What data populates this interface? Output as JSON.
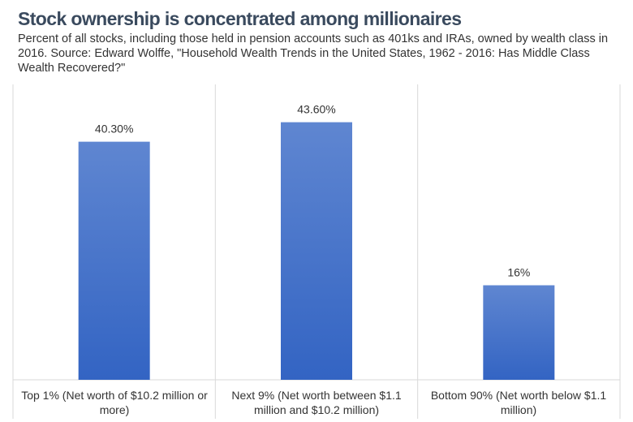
{
  "chart_data": {
    "type": "bar",
    "title": "Stock ownership is concentrated among millionaires",
    "subtitle": "Percent of all stocks, including those held in pension accounts such as 401ks and IRAs, owned by wealth class in 2016. Source: Edward Wolffe, \"Household Wealth Trends in the United States, 1962 - 2016: Has Middle Class Wealth Recovered?\"",
    "categories": [
      "Top 1% (Net worth of $10.2 million or more)",
      "Next 9% (Net worth between $1.1 million and $10.2 million)",
      "Bottom 90% (Net worth below $1.1 million)"
    ],
    "values": [
      40.3,
      43.6,
      16
    ],
    "data_labels": [
      "40.30%",
      "43.60%",
      "16%"
    ],
    "xlabel": "",
    "ylabel": "",
    "ylim": [
      0,
      50
    ],
    "grid": false,
    "legend": "none",
    "bar_color_top": "#5f86d1",
    "bar_color_bottom": "#3364c3",
    "bar_color_solid": "#4472c4"
  }
}
